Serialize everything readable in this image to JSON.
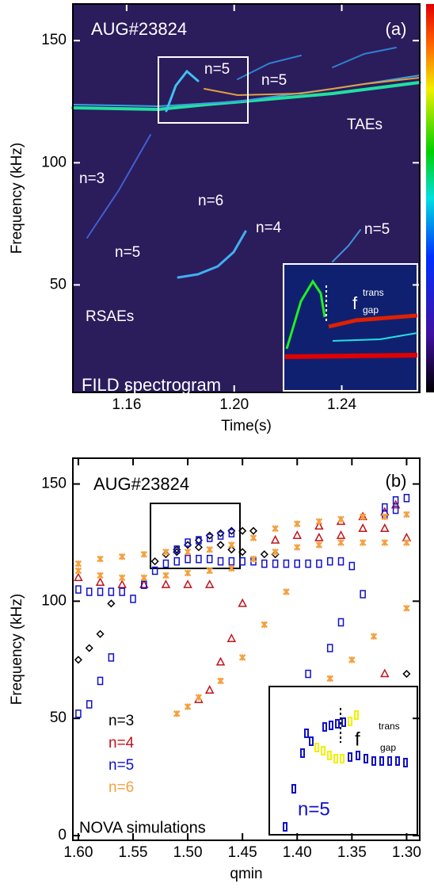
{
  "chart_data": [
    {
      "type": "image",
      "title": "AUG#23824",
      "panel_label": "(a)",
      "xlabel": "Time(s)",
      "ylabel": "Frequency (kHz)",
      "xlim": [
        1.14,
        1.269
      ],
      "ylim": [
        6,
        165
      ],
      "xticks": [
        1.16,
        {
          "value": 1.2,
          "label": "1.20"
        },
        1.24
      ],
      "yticks": [
        50,
        100,
        150
      ],
      "annotations": [
        "n=5",
        "n=5",
        "TAEs",
        "n=3",
        "n=6",
        "n=4",
        "n=5",
        "n=5",
        "RSAEs",
        "FILD spectrogram",
        "f",
        "trans",
        "gap"
      ]
    },
    {
      "type": "scatter",
      "title": "AUG#23824",
      "panel_label": "(b)",
      "xlabel": "qmin",
      "ylabel": "Frequency (kHz)",
      "xlim": [
        1.605,
        1.288
      ],
      "ylim": [
        -2,
        161
      ],
      "xticks": [
        {
          "value": 1.6,
          "label": "1.60"
        },
        1.55,
        {
          "value": 1.5,
          "label": "1.50"
        },
        1.45,
        {
          "value": 1.4,
          "label": "1.40"
        },
        1.35,
        {
          "value": 1.3,
          "label": "1.30"
        }
      ],
      "yticks": [
        0,
        50,
        100,
        150
      ],
      "caption": "NOVA simulations",
      "inset": {
        "labels": [
          "f",
          "trans",
          "gap",
          "n=5"
        ]
      },
      "series": [
        {
          "name": "n=3",
          "color": "#000000",
          "marker": "diamond",
          "x": [
            1.6,
            1.59,
            1.58,
            1.57,
            1.53,
            1.52,
            1.51,
            1.5,
            1.49,
            1.48,
            1.47,
            1.46,
            1.45,
            1.44,
            1.51,
            1.49,
            1.47,
            1.46,
            1.45,
            1.43,
            1.42,
            1.3
          ],
          "values": [
            75,
            80,
            86,
            99,
            117,
            120,
            122,
            124,
            126,
            128,
            129,
            130,
            130,
            130,
            121,
            123,
            124,
            122,
            121,
            120,
            120,
            69
          ]
        },
        {
          "name": "n=4",
          "color": "#c0141c",
          "marker": "triangle",
          "x": [
            1.6,
            1.58,
            1.56,
            1.54,
            1.52,
            1.5,
            1.48,
            1.49,
            1.48,
            1.47,
            1.46,
            1.45,
            1.42,
            1.4,
            1.38,
            1.36,
            1.34,
            1.32,
            1.31,
            1.38,
            1.36,
            1.34,
            1.32,
            1.3,
            1.32
          ],
          "values": [
            110,
            108,
            107,
            107,
            107,
            107,
            107,
            58,
            62,
            74,
            84,
            99,
            126,
            128,
            132,
            134,
            136,
            138,
            141,
            127,
            128,
            131,
            131,
            127,
            69
          ]
        },
        {
          "name": "n=5",
          "color": "#1010c8",
          "marker": "square",
          "x": [
            1.6,
            1.59,
            1.58,
            1.57,
            1.6,
            1.59,
            1.58,
            1.57,
            1.56,
            1.55,
            1.54,
            1.53,
            1.52,
            1.51,
            1.5,
            1.49,
            1.48,
            1.47,
            1.46,
            1.45,
            1.44,
            1.43,
            1.42,
            1.41,
            1.4,
            1.39,
            1.38,
            1.37,
            1.36,
            1.35,
            1.34,
            1.36,
            1.37,
            1.39,
            1.51,
            1.5,
            1.49,
            1.48,
            1.47,
            1.46,
            1.32,
            1.31,
            1.3,
            1.31,
            1.32
          ],
          "values": [
            52,
            56,
            66,
            76,
            105,
            104,
            104,
            104,
            104,
            101,
            107,
            113,
            116,
            117,
            118,
            118,
            118,
            117,
            117,
            117,
            117,
            116,
            116,
            116,
            116,
            116,
            116,
            117,
            117,
            115,
            103,
            91,
            80,
            69,
            122,
            125,
            126,
            127,
            128,
            129,
            137,
            139,
            144,
            143,
            140
          ]
        },
        {
          "name": "n=6",
          "color": "#f5a040",
          "marker": "cross",
          "x": [
            1.6,
            1.58,
            1.56,
            1.54,
            1.52,
            1.5,
            1.48,
            1.46,
            1.44,
            1.42,
            1.4,
            1.38,
            1.36,
            1.34,
            1.32,
            1.3,
            1.6,
            1.58,
            1.56,
            1.54,
            1.52,
            1.5,
            1.48,
            1.46,
            1.44,
            1.42,
            1.4,
            1.38,
            1.36,
            1.34,
            1.32,
            1.3,
            1.51,
            1.5,
            1.49,
            1.47,
            1.45,
            1.43,
            1.41,
            1.37,
            1.35,
            1.33,
            1.3
          ],
          "values": [
            116,
            118,
            119,
            120,
            121,
            121,
            122,
            124,
            127,
            131,
            133,
            134,
            135,
            136,
            136,
            137,
            113,
            111,
            110,
            110,
            111,
            112,
            113,
            114,
            118,
            121,
            123,
            124,
            125,
            125,
            125,
            125,
            52,
            55,
            59,
            66,
            76,
            90,
            104,
            67,
            75,
            85,
            97
          ]
        }
      ]
    }
  ]
}
